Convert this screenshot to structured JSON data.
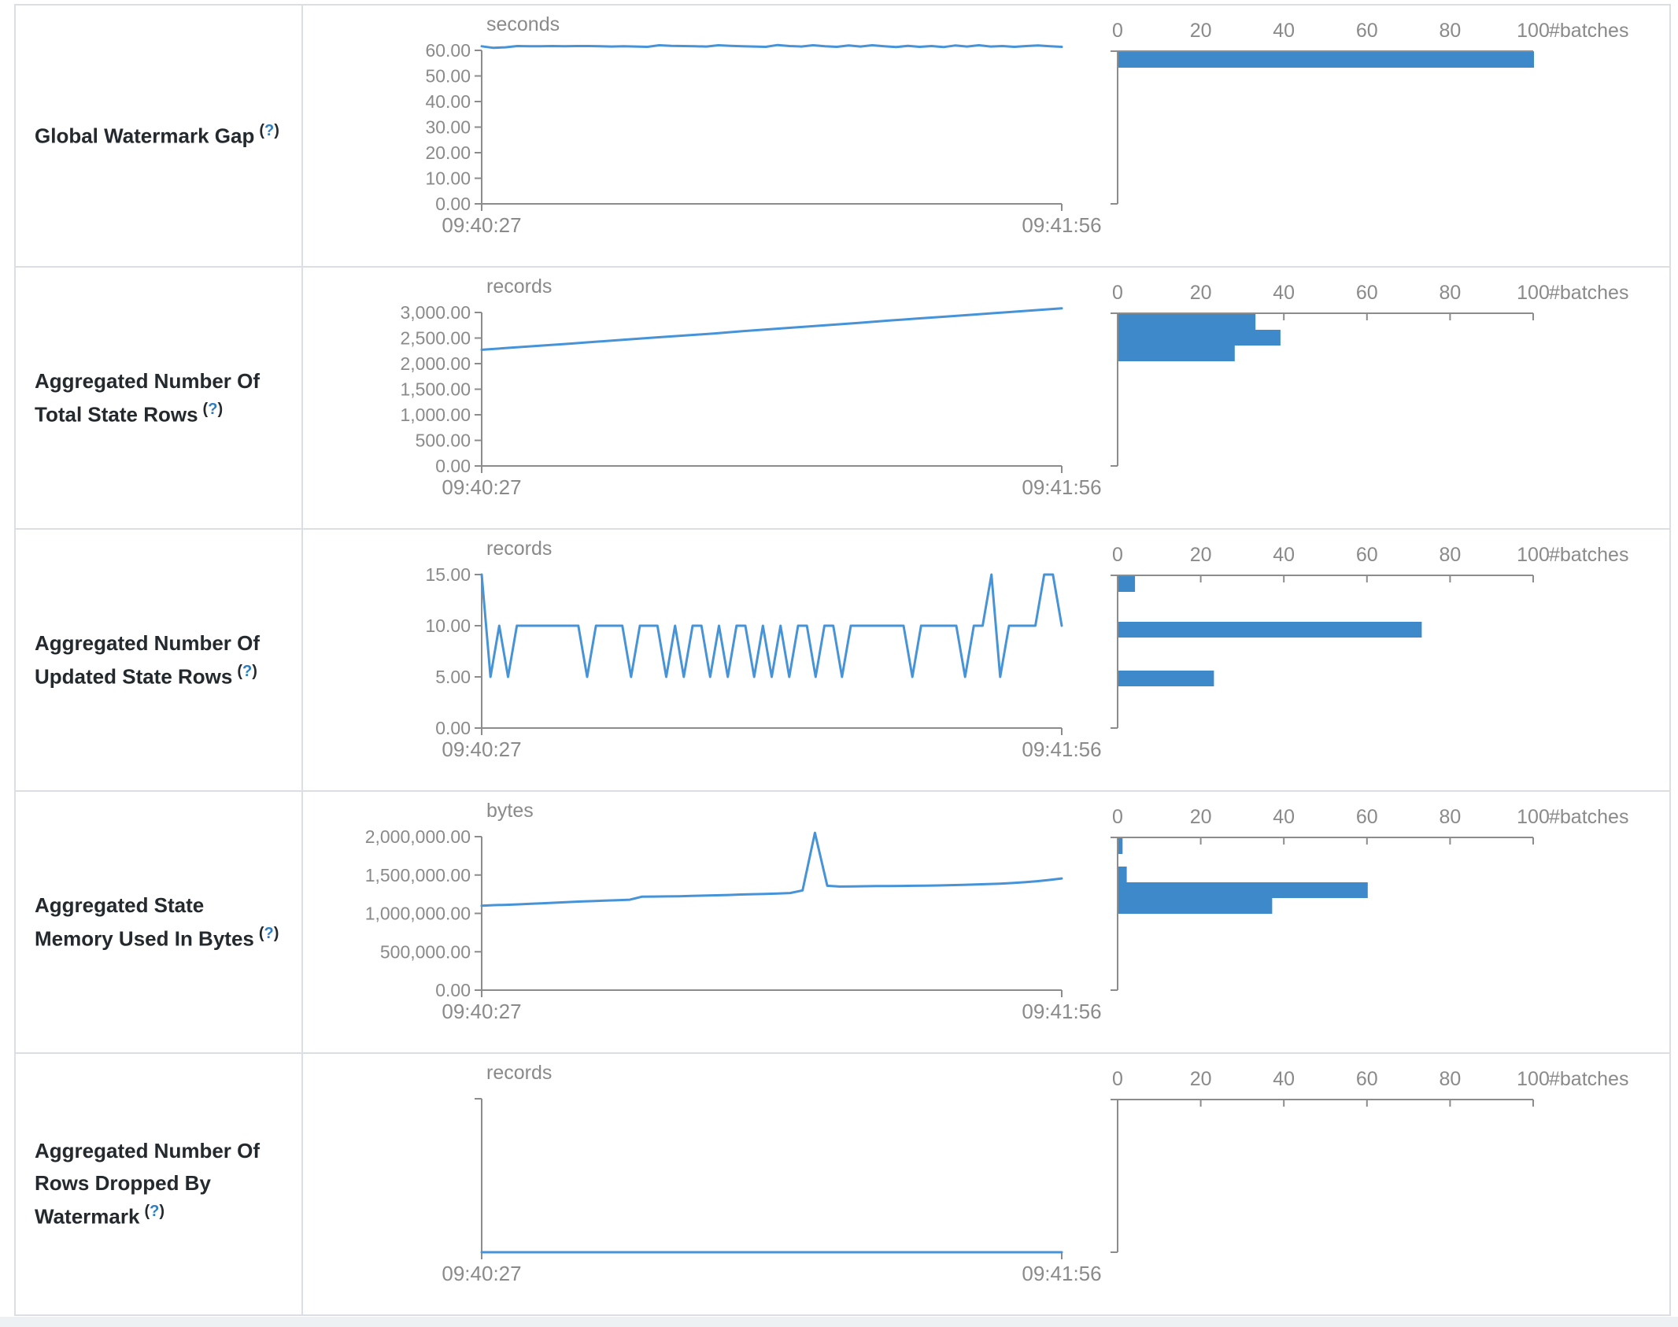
{
  "colors": {
    "line_blue": "#4793d8",
    "bar_blue": "#3d89c9",
    "axis_gray": "#8c8c8c",
    "gray_text": "#8a8a8a",
    "border": "#dbdfe3",
    "label_text": "#24292e",
    "help_link": "#2e7dbf",
    "footer_strip": "#eef1f4"
  },
  "help_badge": {
    "open": "(",
    "question": "?",
    "close": ")"
  },
  "x_axis": {
    "start": "09:40:27",
    "end": "09:41:56"
  },
  "histogram_axis": {
    "ticks": [
      "0",
      "20",
      "40",
      "60",
      "80",
      "100"
    ],
    "max": 100,
    "label": "#batches"
  },
  "rows": [
    {
      "label": "Global Watermark Gap",
      "unit": "seconds",
      "timeline": {
        "type": "line",
        "y_ticks": [
          "60.00",
          "50.00",
          "40.00",
          "30.00",
          "20.00",
          "10.00",
          "0.00"
        ],
        "points": [
          61.6,
          61.0,
          61.2,
          61.7,
          61.6,
          61.6,
          61.7,
          61.6,
          61.7,
          61.7,
          61.6,
          61.5,
          61.6,
          61.5,
          61.4,
          62.0,
          61.8,
          61.7,
          61.6,
          61.5,
          62.0,
          61.8,
          61.6,
          61.5,
          61.4,
          62.1,
          61.7,
          61.5,
          62.0,
          61.6,
          61.4,
          61.9,
          61.5,
          62.0,
          61.6,
          61.3,
          61.8,
          61.4,
          61.7,
          61.3,
          61.9,
          61.5,
          62.0,
          61.5,
          61.7,
          61.4,
          61.7,
          61.9,
          61.6,
          61.4
        ]
      },
      "histogram": {
        "type": "bar",
        "bars": [
          {
            "count": 100,
            "y": 59
          }
        ]
      }
    },
    {
      "label": "Aggregated Number Of Total State Rows",
      "unit": "records",
      "timeline": {
        "type": "line",
        "y_ticks": [
          "3,000.00",
          "2,500.00",
          "2,000.00",
          "1,500.00",
          "1,000.00",
          "500.00",
          "0.00"
        ],
        "points": [
          2270,
          2310,
          2350,
          2390,
          2430,
          2470,
          2510,
          2550,
          2590,
          2635,
          2675,
          2715,
          2755,
          2795,
          2840,
          2880,
          2920,
          2960,
          3000,
          3040,
          3080
        ]
      },
      "histogram": {
        "type": "bar",
        "bars": [
          {
            "count": 33,
            "y": 59
          },
          {
            "count": 39,
            "y": 79
          },
          {
            "count": 28,
            "y": 99
          }
        ]
      }
    },
    {
      "label": "Aggregated Number Of Updated State Rows",
      "unit": "records",
      "timeline": {
        "type": "line",
        "y_ticks": [
          "15.00",
          "10.00",
          "5.00",
          "0.00"
        ],
        "points": [
          15,
          5,
          10,
          5,
          10,
          10,
          10,
          10,
          10,
          10,
          10,
          10,
          5,
          10,
          10,
          10,
          10,
          5,
          10,
          10,
          10,
          5,
          10,
          5,
          10,
          10,
          5,
          10,
          5,
          10,
          10,
          5,
          10,
          5,
          10,
          5,
          10,
          10,
          5,
          10,
          10,
          5,
          10,
          10,
          10,
          10,
          10,
          10,
          10,
          5,
          10,
          10,
          10,
          10,
          10,
          5,
          10,
          10,
          15,
          5,
          10,
          10,
          10,
          10,
          15,
          15,
          10
        ]
      },
      "histogram": {
        "type": "bar",
        "bars": [
          {
            "count": 4,
            "y": 59
          },
          {
            "count": 73,
            "y": 117
          },
          {
            "count": 23,
            "y": 179
          }
        ]
      }
    },
    {
      "label": "Aggregated State Memory Used In Bytes",
      "unit": "bytes",
      "timeline": {
        "type": "line",
        "y_ticks": [
          "2,000,000.00",
          "1,500,000.00",
          "1,000,000.00",
          "500,000.00",
          "0.00"
        ],
        "points": [
          1100000,
          1108000,
          1112000,
          1118000,
          1126000,
          1132000,
          1140000,
          1148000,
          1155000,
          1160000,
          1166000,
          1172000,
          1178000,
          1218000,
          1220000,
          1222000,
          1224000,
          1228000,
          1232000,
          1236000,
          1240000,
          1246000,
          1250000,
          1254000,
          1260000,
          1266000,
          1300000,
          2050000,
          1360000,
          1350000,
          1352000,
          1354000,
          1356000,
          1356000,
          1358000,
          1360000,
          1362000,
          1364000,
          1368000,
          1372000,
          1376000,
          1382000,
          1388000,
          1396000,
          1406000,
          1420000,
          1436000,
          1455000
        ]
      },
      "histogram": {
        "type": "bar",
        "bars": [
          {
            "count": 1,
            "y": 59
          },
          {
            "count": 2,
            "y": 95
          },
          {
            "count": 60,
            "y": 115
          },
          {
            "count": 37,
            "y": 135
          }
        ]
      }
    },
    {
      "label": "Aggregated Number Of Rows Dropped By Watermark",
      "unit": "records",
      "timeline": {
        "type": "line",
        "y_ticks": [],
        "points": [
          0,
          0,
          0
        ]
      },
      "histogram": {
        "type": "bar",
        "bars": []
      }
    }
  ]
}
